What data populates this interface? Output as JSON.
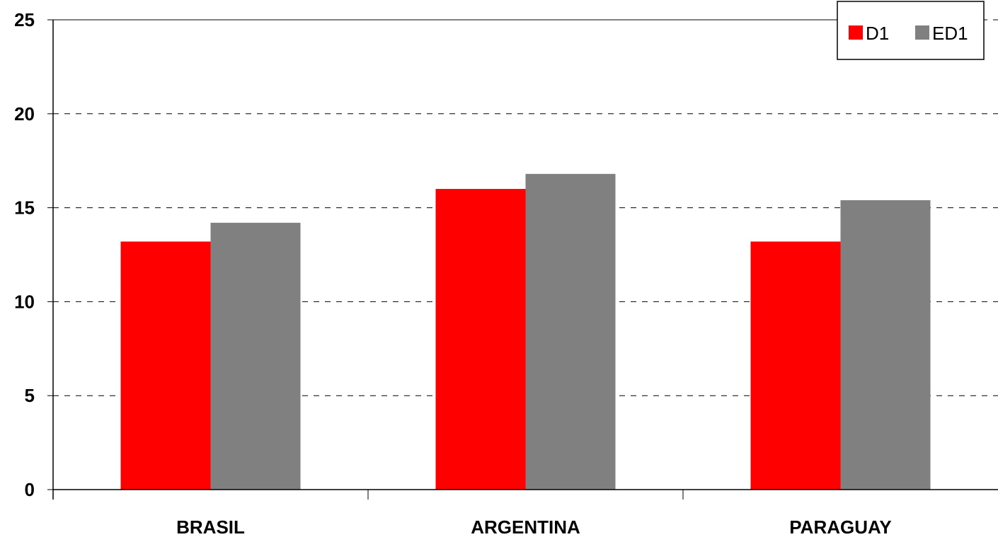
{
  "chart_data": {
    "type": "bar",
    "categories": [
      "BRASIL",
      "ARGENTINA",
      "PARAGUAY"
    ],
    "series": [
      {
        "name": "D1",
        "color": "#ff0000",
        "values": [
          13.2,
          16.0,
          13.2
        ]
      },
      {
        "name": "ED1",
        "color": "#808080",
        "values": [
          14.2,
          16.8,
          15.4
        ]
      }
    ],
    "y_ticks": [
      "0",
      "5",
      "10",
      "15",
      "20",
      "25"
    ],
    "ylim": [
      0,
      25
    ],
    "y_tick_step": 5,
    "title": "",
    "xlabel": "",
    "ylabel": "",
    "grid": "horizontal-dashed",
    "legend_position": "top-right"
  }
}
